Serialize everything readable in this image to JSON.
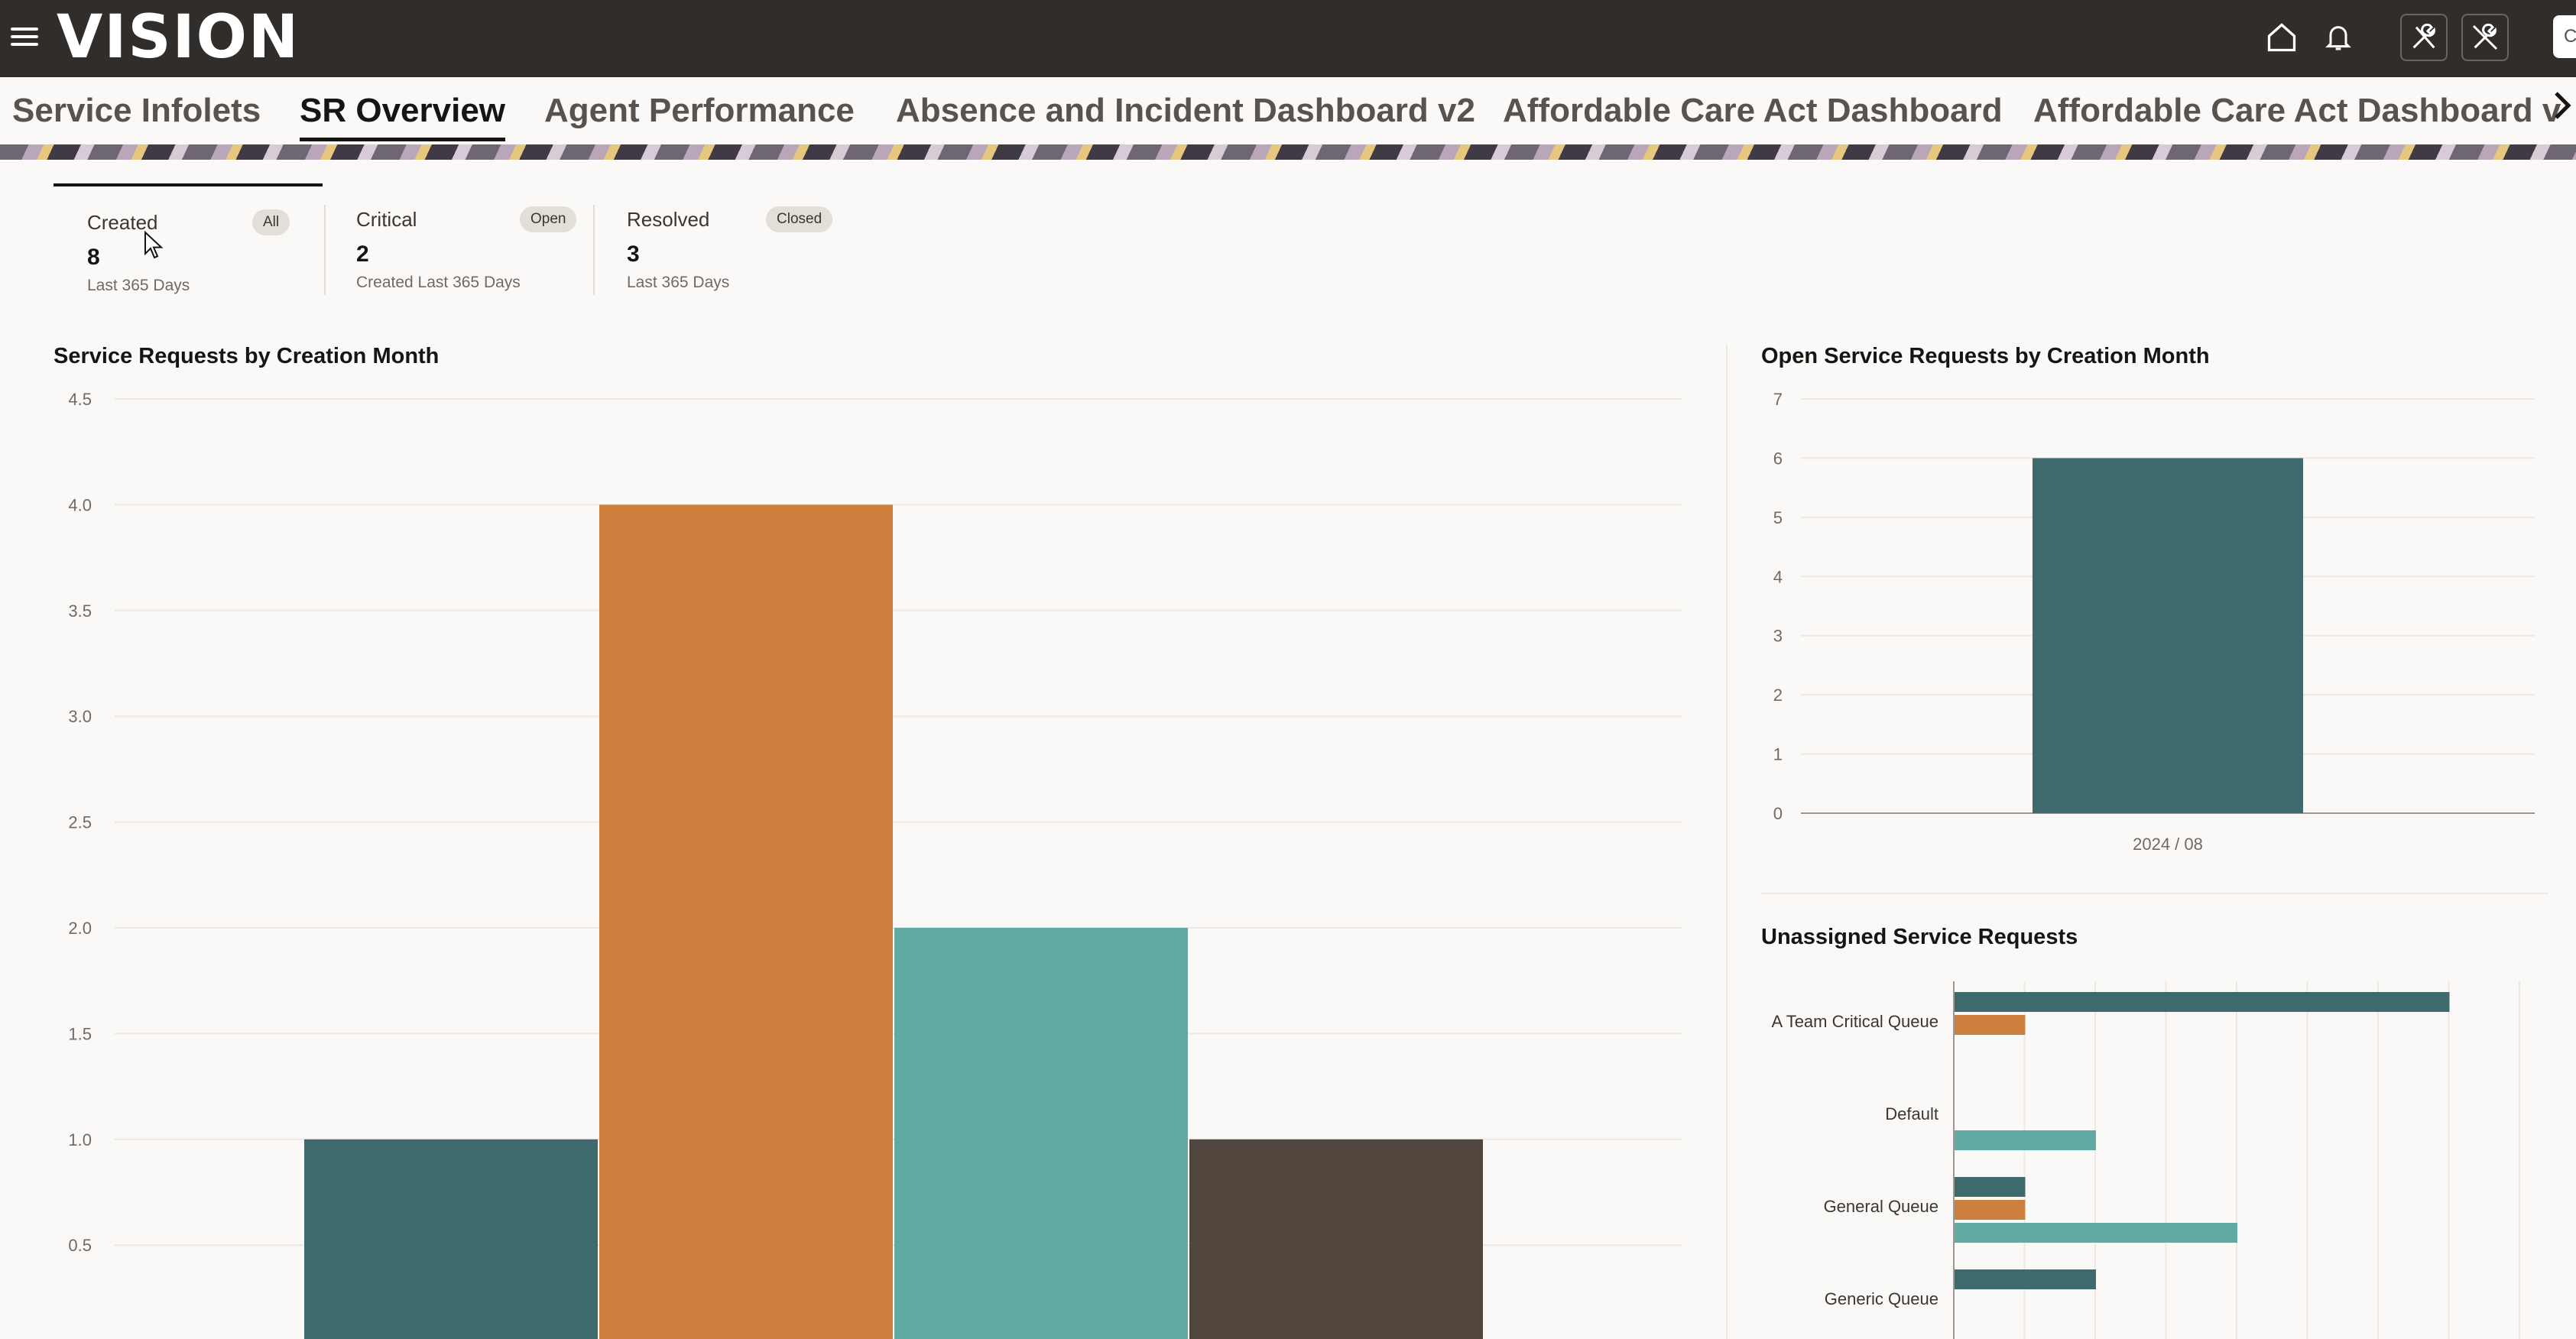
{
  "app": {
    "logo": "VISION",
    "search_hint": "C"
  },
  "top_icons": [
    "home-icon",
    "bell-icon",
    "tools-icon",
    "tools-crossed-icon"
  ],
  "tabs": [
    {
      "label": "Service Infolets",
      "active": false
    },
    {
      "label": "SR Overview",
      "active": true
    },
    {
      "label": "Agent Performance",
      "active": false
    },
    {
      "label": "Absence and Incident Dashboard v2",
      "active": false
    },
    {
      "label": "Affordable Care Act Dashboard",
      "active": false
    },
    {
      "label": "Affordable Care Act Dashboard v",
      "active": false
    }
  ],
  "infolets": [
    {
      "label": "Created",
      "badge": "All",
      "value": "8",
      "sub": "Last 365 Days"
    },
    {
      "label": "Critical",
      "badge": "Open",
      "value": "2",
      "sub": "Created Last 365 Days"
    },
    {
      "label": "Resolved",
      "badge": "Closed",
      "value": "3",
      "sub": "Last 365 Days"
    }
  ],
  "colors": {
    "teal_dark": "#3e6a6e",
    "orange": "#cd803d",
    "teal_light": "#62a9a4",
    "brown": "#51463e"
  },
  "chart_data": [
    {
      "type": "bar",
      "title": "Service Requests by Creation Month",
      "ylim": [
        0,
        4.5
      ],
      "yticks": [
        "4.5",
        "4.0",
        "3.5",
        "3.0",
        "2.5",
        "2.0",
        "1.5",
        "1.0",
        "0.5"
      ],
      "series": [
        {
          "values": [
            1.0
          ],
          "color": "#3e6a6e"
        },
        {
          "values": [
            4.0
          ],
          "color": "#cd803d"
        },
        {
          "values": [
            2.0
          ],
          "color": "#62a9a4"
        },
        {
          "values": [
            1.0
          ],
          "color": "#51463e"
        }
      ]
    },
    {
      "type": "bar",
      "title": "Open Service Requests by Creation Month",
      "categories": [
        "2024 / 08"
      ],
      "values": [
        6
      ],
      "ylim": [
        0,
        7
      ],
      "yticks": [
        "7",
        "6",
        "5",
        "4",
        "3",
        "2",
        "1",
        "0"
      ],
      "color": "#3e6a6e"
    },
    {
      "type": "bar",
      "orientation": "horizontal",
      "title": "Unassigned Service Requests",
      "categories": [
        "A Team Critical Queue",
        "Default",
        "General Queue",
        "Generic Queue"
      ],
      "series": [
        {
          "color": "#3e6a6e",
          "values": [
            7,
            0,
            1,
            2
          ]
        },
        {
          "color": "#cd803d",
          "values": [
            1,
            0,
            1,
            0
          ]
        },
        {
          "color": "#62a9a4",
          "values": [
            0,
            2,
            4,
            0
          ]
        }
      ],
      "xlim": [
        0,
        8
      ]
    }
  ]
}
